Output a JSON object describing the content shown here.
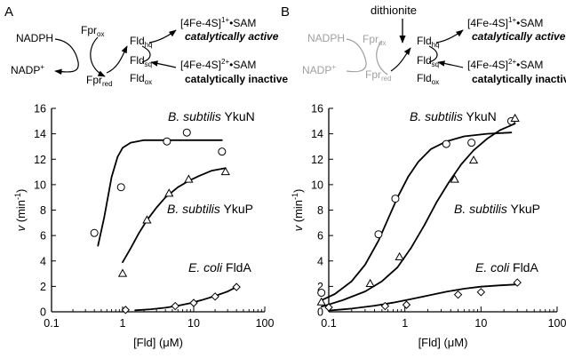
{
  "panels": [
    {
      "letter": "A",
      "scheme": {
        "nadph": "NADPH",
        "nadp_base": "NADP",
        "nadp_sup": "+",
        "fpr": "Fpr",
        "fpr_ox_sub": "ox",
        "fpr_red_sub": "red",
        "fld": "Fld",
        "fld_hq_sub": "hq",
        "fld_sq_sub": "sq",
        "fld_ox_sub": "ox",
        "active_cluster": "[4Fe-4S]",
        "active_charge": "1+",
        "active_sam": "•SAM",
        "active_label": "catalytically active",
        "inactive_cluster": "[4Fe-4S]",
        "inactive_charge": "2+",
        "inactive_sam": "•SAM",
        "inactive_label": "catalytically inactive",
        "donor_greyed": false
      }
    },
    {
      "letter": "B",
      "scheme": {
        "reductant": "dithionite",
        "nadph": "NADPH",
        "nadp_base": "NADP",
        "nadp_sup": "+",
        "fpr": "Fpr",
        "fpr_ox_sub": "ox",
        "fpr_red_sub": "red",
        "fld": "Fld",
        "fld_hq_sub": "hq",
        "fld_sq_sub": "sq",
        "fld_ox_sub": "ox",
        "active_cluster": "[4Fe-4S]",
        "active_charge": "1+",
        "active_sam": "•SAM",
        "active_label": "catalytically active",
        "inactive_cluster": "[4Fe-4S]",
        "inactive_charge": "2+",
        "inactive_sam": "•SAM",
        "inactive_label": "catalytically inactive",
        "donor_greyed": true
      }
    }
  ],
  "chart_data": [
    {
      "panel": "A",
      "type": "scatter",
      "x_scale": "log",
      "xlim": [
        0.1,
        100
      ],
      "ylim": [
        0,
        16
      ],
      "xticks": [
        "0.1",
        "1",
        "10",
        "100"
      ],
      "yticks": [
        "0",
        "2",
        "4",
        "6",
        "8",
        "10",
        "12",
        "14",
        "16"
      ],
      "xlabel": "[Fld] (μM)",
      "ylabel": "v (min⁻¹)",
      "ylabel_var": "v",
      "ylabel_unit": " (min",
      "ylabel_exp": "-1",
      "ylabel_close": ")",
      "xlabel_main": "[Fld] (",
      "xlabel_unit": "μM)",
      "series": [
        {
          "name": "B. subtilis YkuN",
          "name_species": "B. subtilis",
          "name_protein": " YkuN",
          "marker": "circle",
          "points": [
            [
              0.4,
              6.2
            ],
            [
              0.95,
              9.8
            ],
            [
              4.2,
              13.4
            ],
            [
              8,
              14.1
            ],
            [
              25,
              12.6
            ]
          ],
          "fit": [
            [
              0.45,
              5.2
            ],
            [
              0.55,
              7.4
            ],
            [
              0.7,
              10.6
            ],
            [
              0.85,
              12.2
            ],
            [
              1.0,
              12.9
            ],
            [
              1.3,
              13.3
            ],
            [
              2,
              13.5
            ],
            [
              5,
              13.5
            ],
            [
              10,
              13.5
            ],
            [
              25,
              13.5
            ]
          ],
          "name_pos": "upper"
        },
        {
          "name": "B. subtilis YkuP",
          "name_species": "B. subtilis",
          "name_protein": " YkuP",
          "marker": "triangle",
          "points": [
            [
              1,
              3.0
            ],
            [
              2.2,
              7.2
            ],
            [
              4.5,
              9.3
            ],
            [
              8.5,
              10.4
            ],
            [
              28,
              11.0
            ]
          ],
          "fit": [
            [
              1,
              3.9
            ],
            [
              1.3,
              5.0
            ],
            [
              1.7,
              6.2
            ],
            [
              2.2,
              7.2
            ],
            [
              3,
              8.2
            ],
            [
              4,
              9.0
            ],
            [
              6,
              9.8
            ],
            [
              8.5,
              10.3
            ],
            [
              12,
              10.7
            ],
            [
              18,
              11.1
            ],
            [
              28,
              11.3
            ]
          ],
          "name_pos": "middle"
        },
        {
          "name": "E. coli FldA",
          "name_species": "E. coli",
          "name_protein": " FldA",
          "marker": "diamond",
          "points": [
            [
              1.1,
              0.15
            ],
            [
              5.5,
              0.45
            ],
            [
              10,
              0.7
            ],
            [
              20,
              1.2
            ],
            [
              40,
              1.95
            ]
          ],
          "fit": [
            [
              1.5,
              0.12
            ],
            [
              2.5,
              0.2
            ],
            [
              4,
              0.32
            ],
            [
              6,
              0.48
            ],
            [
              9,
              0.68
            ],
            [
              13,
              0.92
            ],
            [
              20,
              1.25
            ],
            [
              30,
              1.6
            ],
            [
              40,
              1.95
            ]
          ],
          "name_pos": "lower"
        }
      ]
    },
    {
      "panel": "B",
      "type": "scatter",
      "x_scale": "log",
      "xlim": [
        0.1,
        100
      ],
      "ylim": [
        0,
        16
      ],
      "xticks": [
        "0.1",
        "1",
        "10",
        "100"
      ],
      "yticks": [
        "0",
        "2",
        "4",
        "6",
        "8",
        "10",
        "12",
        "14",
        "16"
      ],
      "xlabel": "[Fld] (μM)",
      "ylabel": "v (min⁻¹)",
      "ylabel_var": "v",
      "ylabel_unit": " (min",
      "ylabel_exp": "-1",
      "ylabel_close": ")",
      "xlabel_main": "[Fld] (",
      "xlabel_unit": "μM)",
      "series": [
        {
          "name": "B. subtilis YkuN",
          "name_species": "B. subtilis",
          "name_protein": " YkuN",
          "marker": "circle",
          "points": [
            [
              0.08,
              1.5
            ],
            [
              0.45,
              6.1
            ],
            [
              0.75,
              8.9
            ],
            [
              3.5,
              13.2
            ],
            [
              7.5,
              13.3
            ],
            [
              25,
              15.0
            ]
          ],
          "fit": [
            [
              0.08,
              0.9
            ],
            [
              0.12,
              1.4
            ],
            [
              0.2,
              2.4
            ],
            [
              0.3,
              3.7
            ],
            [
              0.45,
              5.6
            ],
            [
              0.6,
              7.3
            ],
            [
              0.8,
              9.0
            ],
            [
              1.1,
              10.6
            ],
            [
              1.5,
              11.8
            ],
            [
              2.2,
              12.8
            ],
            [
              3.5,
              13.4
            ],
            [
              6,
              13.8
            ],
            [
              12,
              14.0
            ],
            [
              25,
              14.1
            ]
          ],
          "name_pos": "upper"
        },
        {
          "name": "B. subtilis YkuP",
          "name_species": "B. subtilis",
          "name_protein": " YkuP",
          "marker": "triangle",
          "points": [
            [
              0.08,
              0.75
            ],
            [
              0.35,
              2.2
            ],
            [
              0.85,
              4.3
            ],
            [
              4.5,
              10.4
            ],
            [
              8,
              11.9
            ],
            [
              28,
              15.2
            ]
          ],
          "fit": [
            [
              0.08,
              0.4
            ],
            [
              0.15,
              0.9
            ],
            [
              0.3,
              1.6
            ],
            [
              0.5,
              2.4
            ],
            [
              0.8,
              3.5
            ],
            [
              1.2,
              5.0
            ],
            [
              1.8,
              6.8
            ],
            [
              2.6,
              8.6
            ],
            [
              3.8,
              10.2
            ],
            [
              5.5,
              11.6
            ],
            [
              8,
              12.7
            ],
            [
              12,
              13.6
            ],
            [
              18,
              14.3
            ],
            [
              28,
              14.8
            ]
          ],
          "name_pos": "middle"
        },
        {
          "name": "E. coli FldA",
          "name_species": "E. coli",
          "name_protein": " FldA",
          "marker": "diamond",
          "points": [
            [
              0.1,
              0.35
            ],
            [
              0.55,
              0.45
            ],
            [
              1.05,
              0.55
            ],
            [
              5,
              1.35
            ],
            [
              10,
              1.55
            ],
            [
              30,
              2.3
            ]
          ],
          "fit": [
            [
              0.1,
              0.1
            ],
            [
              0.2,
              0.25
            ],
            [
              0.4,
              0.48
            ],
            [
              0.7,
              0.72
            ],
            [
              1.2,
              1.0
            ],
            [
              2,
              1.28
            ],
            [
              3.5,
              1.58
            ],
            [
              6,
              1.82
            ],
            [
              10,
              1.98
            ],
            [
              18,
              2.08
            ],
            [
              30,
              2.15
            ]
          ],
          "name_pos": "lower"
        }
      ]
    }
  ]
}
